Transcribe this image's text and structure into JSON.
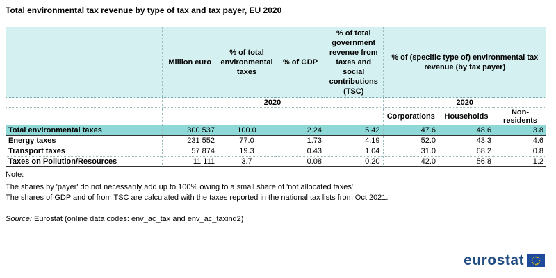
{
  "title": "Total environmental tax revenue by type of tax and tax payer, EU 2020",
  "table": {
    "headers": {
      "million_euro": "Million euro",
      "pct_total_env": "% of total environmental taxes",
      "pct_gdp": "% of GDP",
      "pct_tsc": "% of total government revenue from taxes and social contributions (TSC)",
      "pct_payer": "% of (specific type of) environmental tax revenue (by tax payer)"
    },
    "year_left": "2020",
    "year_right": "2020",
    "subheaders": [
      "Corporations",
      "Households",
      "Non-residents"
    ],
    "rows": [
      {
        "label": "Total environmental taxes",
        "million": "300 537",
        "pct_total": "100.0",
        "gdp": "2.24",
        "tsc": "5.42",
        "corp": "47.6",
        "house": "48.6",
        "nonres": "3.8"
      },
      {
        "label": "Energy taxes",
        "million": "231 552",
        "pct_total": "77.0",
        "gdp": "1.73",
        "tsc": "4.19",
        "corp": "52.0",
        "house": "43.3",
        "nonres": "4.6"
      },
      {
        "label": "Transport taxes",
        "million": "57 874",
        "pct_total": "19.3",
        "gdp": "0.43",
        "tsc": "1.04",
        "corp": "31.0",
        "house": "68.2",
        "nonres": "0.8"
      },
      {
        "label": "Taxes on Pollution/Resources",
        "million": "11 111",
        "pct_total": "3.7",
        "gdp": "0.08",
        "tsc": "0.20",
        "corp": "42.0",
        "house": "56.8",
        "nonres": "1.2"
      }
    ]
  },
  "notes": {
    "heading": "Note:",
    "line1": "The shares by 'payer' do not necessarily add up to 100% owing to a small share of 'not allocated taxes'.",
    "line2": "The shares of GDP and of from TSC are calculated with the taxes reported in the national tax lists from Oct 2021.",
    "source_label": "Source:",
    "source_text": " Eurostat (online data codes: env_ac_tax and env_ac_taxind2)"
  },
  "logo": {
    "text": "eurostat",
    "icon": "eu-flag-icon"
  }
}
